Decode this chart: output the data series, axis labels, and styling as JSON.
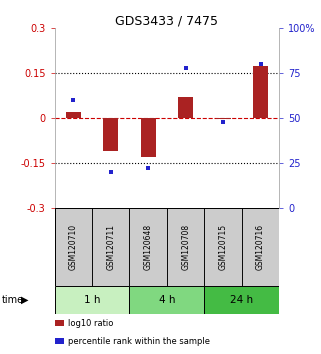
{
  "title": "GDS3433 / 7475",
  "samples": [
    "GSM120710",
    "GSM120711",
    "GSM120648",
    "GSM120708",
    "GSM120715",
    "GSM120716"
  ],
  "log10_ratio": [
    0.02,
    -0.11,
    -0.13,
    0.07,
    -0.005,
    0.175
  ],
  "percentile_rank": [
    60,
    20,
    22,
    78,
    48,
    80
  ],
  "groups": [
    {
      "label": "1 h",
      "indices": [
        0,
        1
      ],
      "color": "#c8f0c0"
    },
    {
      "label": "4 h",
      "indices": [
        2,
        3
      ],
      "color": "#80d880"
    },
    {
      "label": "24 h",
      "indices": [
        4,
        5
      ],
      "color": "#44bb44"
    }
  ],
  "ylim": [
    -0.3,
    0.3
  ],
  "yticks_left": [
    -0.3,
    -0.15,
    0,
    0.15,
    0.3
  ],
  "yticks_right_vals": [
    0,
    25,
    50,
    75,
    100
  ],
  "yticks_right_labels": [
    "0",
    "25",
    "50",
    "75",
    "100%"
  ],
  "hlines_dotted": [
    -0.15,
    0.15
  ],
  "hline_zero_color": "#cc0000",
  "bar_color": "#aa2222",
  "dot_color": "#2222cc",
  "sample_box_color": "#cccccc",
  "background_color": "#ffffff",
  "left_tick_color": "#cc0000",
  "right_tick_color": "#2222cc",
  "legend_items": [
    {
      "label": "log10 ratio",
      "color": "#aa2222"
    },
    {
      "label": "percentile rank within the sample",
      "color": "#2222cc"
    }
  ]
}
